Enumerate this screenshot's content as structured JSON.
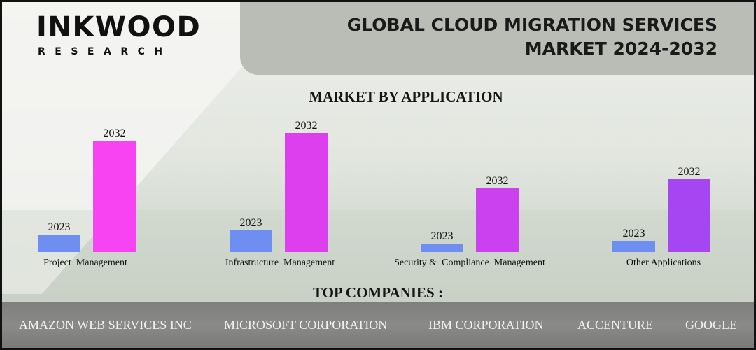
{
  "brand": {
    "name": "INKWOOD",
    "tagline": "RESEARCH"
  },
  "header": {
    "title_line1": "GLOBAL CLOUD MIGRATION SERVICES",
    "title_line2": "MARKET 2024-2032"
  },
  "market_heading": "MARKET BY APPLICATION",
  "companies_heading": "TOP COMPANIES :",
  "companies": [
    "AMAZON WEB SERVICES INC",
    "MICROSOFT CORPORATION",
    "IBM CORPORATION",
    "ACCENTURE",
    "GOOGLE"
  ],
  "colors": {
    "bar_2023": "#6f8ef2",
    "header_panel": "#b9bdb6",
    "companies_strip": "#808080"
  },
  "chart_data": {
    "type": "bar",
    "title": "MARKET BY APPLICATION",
    "categories": [
      "Project  Management",
      "Infrastructure  Management",
      "Security &  Compliance  Management",
      "Other Applications"
    ],
    "series": [
      {
        "name": "2023",
        "values": [
          25,
          31,
          12,
          16
        ]
      },
      {
        "name": "2032",
        "values": [
          159,
          170,
          91,
          104
        ]
      }
    ],
    "bar_2032_colors": [
      "#f843f2",
      "#dd3fee",
      "#cb40ef",
      "#a546f2"
    ],
    "data_labels": true,
    "ylim": [
      0,
      180
    ],
    "grid": false,
    "legend": "none"
  }
}
